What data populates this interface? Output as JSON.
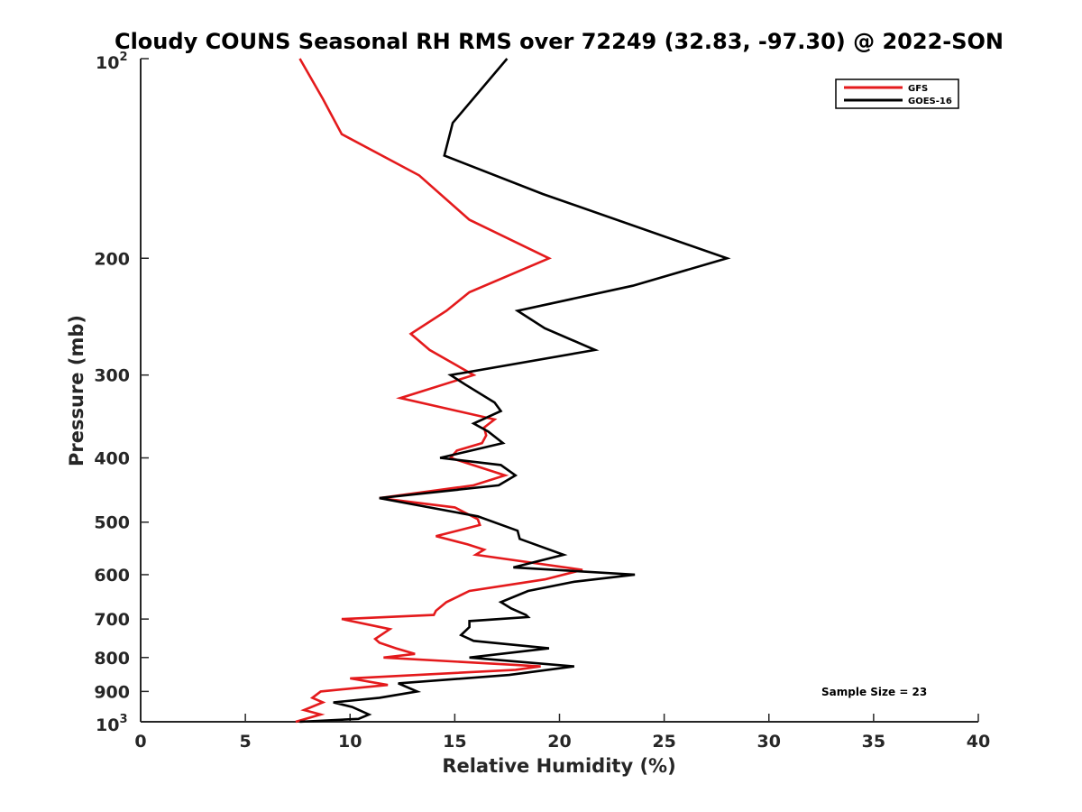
{
  "chart_data": {
    "type": "line",
    "title": "Cloudy COUNS Seasonal RH RMS over 72249 (32.83, -97.30) @ 2022-SON",
    "xlabel": "Relative Humidity (%)",
    "ylabel": "Pressure (mb)",
    "xlim": [
      0,
      40
    ],
    "ylim": [
      100,
      1000
    ],
    "yscale": "log",
    "yreversed": true,
    "x_ticks": [
      0,
      5,
      10,
      15,
      20,
      25,
      30,
      35,
      40
    ],
    "x_tick_labels": [
      "0",
      "5",
      "10",
      "15",
      "20",
      "25",
      "30",
      "35",
      "40"
    ],
    "y_ticks": [
      200,
      300,
      400,
      500,
      600,
      700,
      800,
      900
    ],
    "y_tick_labels": [
      "200",
      "300",
      "400",
      "500",
      "600",
      "700",
      "800",
      "900"
    ],
    "y_tick_top": {
      "value": 100,
      "base": "10",
      "exponent": "2"
    },
    "y_tick_bottom": {
      "value": 1000,
      "base": "10",
      "exponent": "3"
    },
    "legend_position": "top-right",
    "annotation": "Sample Size = 23",
    "series": [
      {
        "name": "GFS",
        "color": "#e41a1c",
        "points": [
          [
            7.6,
            100
          ],
          [
            8.7,
            115
          ],
          [
            9.6,
            130
          ],
          [
            13.3,
            150
          ],
          [
            15.7,
            175
          ],
          [
            19.5,
            200
          ],
          [
            15.7,
            225
          ],
          [
            14.6,
            240
          ],
          [
            12.9,
            260
          ],
          [
            13.8,
            275
          ],
          [
            15.9,
            300
          ],
          [
            12.4,
            325
          ],
          [
            16.9,
            350
          ],
          [
            16.4,
            360
          ],
          [
            16.5,
            370
          ],
          [
            16.3,
            380
          ],
          [
            15.1,
            390
          ],
          [
            14.8,
            400
          ],
          [
            17.4,
            425
          ],
          [
            15.9,
            440
          ],
          [
            11.4,
            460
          ],
          [
            15.0,
            475
          ],
          [
            16.1,
            495
          ],
          [
            16.2,
            505
          ],
          [
            14.1,
            525
          ],
          [
            15.6,
            540
          ],
          [
            16.4,
            550
          ],
          [
            16.0,
            560
          ],
          [
            21.1,
            590
          ],
          [
            19.3,
            610
          ],
          [
            15.7,
            635
          ],
          [
            14.6,
            660
          ],
          [
            14.1,
            680
          ],
          [
            14.0,
            690
          ],
          [
            9.6,
            700
          ],
          [
            11.9,
            725
          ],
          [
            11.2,
            750
          ],
          [
            11.4,
            760
          ],
          [
            12.2,
            775
          ],
          [
            13.1,
            790
          ],
          [
            11.6,
            800
          ],
          [
            19.1,
            825
          ],
          [
            17.9,
            835
          ],
          [
            10.0,
            860
          ],
          [
            11.8,
            880
          ],
          [
            8.6,
            900
          ],
          [
            8.2,
            920
          ],
          [
            8.7,
            935
          ],
          [
            7.8,
            960
          ],
          [
            8.6,
            975
          ],
          [
            7.4,
            1000
          ]
        ]
      },
      {
        "name": "GOES-16",
        "color": "#000000",
        "points": [
          [
            17.5,
            100
          ],
          [
            14.9,
            125
          ],
          [
            14.5,
            140
          ],
          [
            19.2,
            160
          ],
          [
            28.0,
            200
          ],
          [
            23.5,
            220
          ],
          [
            18.0,
            240
          ],
          [
            19.3,
            255
          ],
          [
            21.7,
            275
          ],
          [
            14.8,
            300
          ],
          [
            15.5,
            310
          ],
          [
            16.9,
            330
          ],
          [
            17.2,
            340
          ],
          [
            15.9,
            355
          ],
          [
            16.6,
            365
          ],
          [
            17.3,
            380
          ],
          [
            14.3,
            400
          ],
          [
            17.2,
            410
          ],
          [
            17.9,
            425
          ],
          [
            17.1,
            440
          ],
          [
            11.4,
            460
          ],
          [
            16.1,
            490
          ],
          [
            18.0,
            515
          ],
          [
            18.1,
            530
          ],
          [
            20.2,
            560
          ],
          [
            17.8,
            585
          ],
          [
            23.6,
            600
          ],
          [
            20.7,
            615
          ],
          [
            18.5,
            635
          ],
          [
            17.2,
            660
          ],
          [
            17.7,
            675
          ],
          [
            18.4,
            690
          ],
          [
            18.5,
            695
          ],
          [
            15.7,
            705
          ],
          [
            15.7,
            720
          ],
          [
            15.3,
            740
          ],
          [
            15.9,
            755
          ],
          [
            19.5,
            775
          ],
          [
            15.7,
            800
          ],
          [
            20.7,
            825
          ],
          [
            17.6,
            850
          ],
          [
            12.3,
            875
          ],
          [
            13.2,
            900
          ],
          [
            11.4,
            920
          ],
          [
            9.2,
            935
          ],
          [
            10.1,
            950
          ],
          [
            10.9,
            975
          ],
          [
            10.4,
            990
          ],
          [
            7.6,
            1000
          ]
        ]
      }
    ]
  }
}
